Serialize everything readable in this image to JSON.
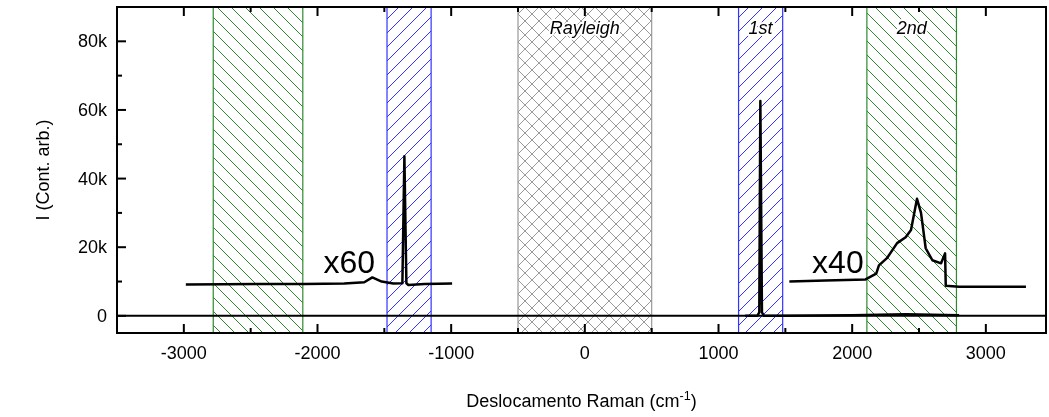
{
  "chart_data": {
    "type": "line",
    "xlabel": "Deslocamento Raman (cm$^{-1}$)",
    "ylabel": "I (Cont. arb.)",
    "xlim": [
      -3500,
      3450
    ],
    "ylim": [
      -5000,
      90000
    ],
    "xticks": [
      {
        "value": -3500,
        "label": null
      },
      -3000,
      {
        "value": -2500,
        "label": null
      },
      -2000,
      {
        "value": -1500,
        "label": null
      },
      -1000,
      {
        "value": -500,
        "label": null
      },
      0,
      {
        "value": 500,
        "label": null
      },
      1000,
      {
        "value": 1500,
        "label": null
      },
      2000,
      {
        "value": 2500,
        "label": null
      },
      3000
    ],
    "yticks": [
      0,
      {
        "value": 10000,
        "label": null
      },
      {
        "value": 20000,
        "label": "20k"
      },
      {
        "value": 30000,
        "label": null
      },
      {
        "value": 40000,
        "label": "40k"
      },
      {
        "value": 50000,
        "label": null
      },
      {
        "value": 60000,
        "label": "60k"
      },
      {
        "value": 70000,
        "label": null
      },
      {
        "value": 80000,
        "label": "80k"
      }
    ],
    "marker": "none",
    "line_style": "solid",
    "series": [
      {
        "color": "#000000",
        "x": [
          -2985,
          -2700,
          -2400,
          -2100,
          -1800,
          -1650,
          -1590,
          -1520,
          -1433,
          -1365,
          -1350,
          -1335,
          -1320,
          -1200,
          -993
        ],
        "values": [
          9100,
          9200,
          9300,
          9300,
          9400,
          9800,
          11200,
          10000,
          9400,
          9500,
          46500,
          9500,
          9000,
          9300,
          9400
        ]
      },
      {
        "color": "#000000",
        "x": [
          1200,
          1290,
          1305,
          1313,
          1325,
          1340,
          1500,
          2000,
          2400,
          2800
        ],
        "values": [
          0,
          0,
          1000,
          62600,
          1000,
          0,
          0,
          200,
          500,
          200
        ]
      },
      {
        "color": "#000000",
        "x": [
          1530,
          1800,
          2100,
          2180,
          2200,
          2260,
          2336,
          2400,
          2440,
          2485,
          2515,
          2550,
          2600,
          2665,
          2695,
          2700,
          2800,
          3300
        ],
        "values": [
          10000,
          10300,
          10600,
          12300,
          14700,
          16800,
          21200,
          22900,
          25000,
          34100,
          30000,
          19700,
          16200,
          15300,
          18200,
          8800,
          8500,
          8500
        ]
      }
    ],
    "ref_lines": [
      {
        "axis": "y",
        "value": 0,
        "color": "#000000"
      }
    ],
    "bands": [
      {
        "axis": "x",
        "from": -2780,
        "to": -2110,
        "color": "#2e8b2e"
      },
      {
        "axis": "x",
        "from": -1480,
        "to": -1150,
        "color": "#3333ff"
      },
      {
        "axis": "x",
        "from": -500,
        "to": 500,
        "label": "Rayleigh",
        "color": "#999999"
      },
      {
        "axis": "x",
        "from": 1150,
        "to": 1480,
        "label": "1st",
        "color": "#3333ff"
      },
      {
        "axis": "x",
        "from": 2110,
        "to": 2780,
        "label": "2nd",
        "color": "#2e8b2e"
      }
    ],
    "annotations": [
      "x60",
      "x40"
    ]
  }
}
